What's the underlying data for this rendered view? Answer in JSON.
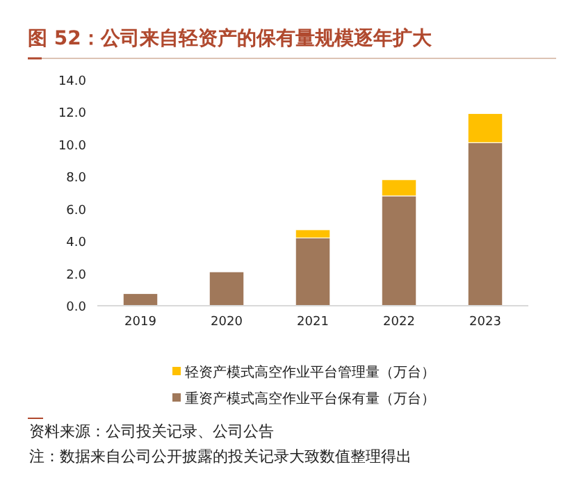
{
  "chart_data": {
    "type": "bar",
    "title": "图 52：公司来自轻资产的保有量规模逐年扩大",
    "categories": [
      "2019",
      "2020",
      "2021",
      "2022",
      "2023"
    ],
    "stacked": true,
    "series": [
      {
        "name": "重资产模式高空作业平台保有量（万台）",
        "color": "#a0785a",
        "values": [
          0.75,
          2.1,
          4.2,
          6.8,
          10.1
        ]
      },
      {
        "name": "轻资产模式高空作业平台管理量（万台）",
        "color": "#ffc000",
        "values": [
          null,
          null,
          0.5,
          1.0,
          1.8
        ]
      }
    ],
    "ylim": [
      0,
      14
    ],
    "yticks": [
      {
        "value": 0,
        "label": "0.0"
      },
      {
        "value": 2,
        "label": "2.0"
      },
      {
        "value": 4,
        "label": "4.0"
      },
      {
        "value": 6,
        "label": "6.0"
      },
      {
        "value": 8,
        "label": "8.0"
      },
      {
        "value": 10,
        "label": "10.0"
      },
      {
        "value": 12,
        "label": "12.0"
      },
      {
        "value": 14,
        "label": "14.0"
      }
    ],
    "legend": "bottom",
    "grid": false,
    "annotations": [
      "资料来源：公司投关记录、公司公告",
      "注：数据来自公司公开披露的投关记录大致数值整理得出"
    ]
  }
}
